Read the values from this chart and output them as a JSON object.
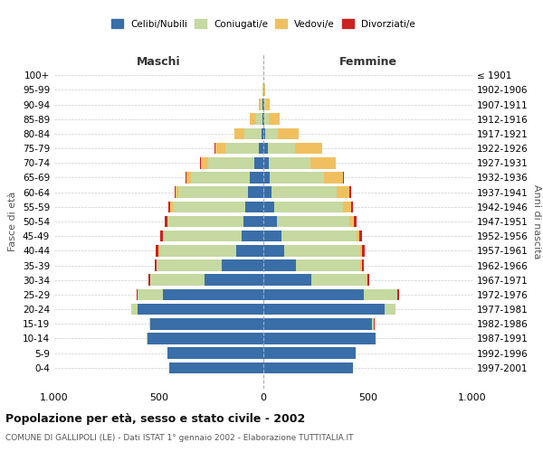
{
  "age_groups": [
    "0-4",
    "5-9",
    "10-14",
    "15-19",
    "20-24",
    "25-29",
    "30-34",
    "35-39",
    "40-44",
    "45-49",
    "50-54",
    "55-59",
    "60-64",
    "65-69",
    "70-74",
    "75-79",
    "80-84",
    "85-89",
    "90-94",
    "95-99",
    "100+"
  ],
  "birth_years": [
    "1997-2001",
    "1992-1996",
    "1987-1991",
    "1982-1986",
    "1977-1981",
    "1972-1976",
    "1967-1971",
    "1962-1966",
    "1957-1961",
    "1952-1956",
    "1947-1951",
    "1942-1946",
    "1937-1941",
    "1932-1936",
    "1927-1931",
    "1922-1926",
    "1917-1921",
    "1912-1916",
    "1907-1911",
    "1902-1906",
    "≤ 1901"
  ],
  "males": {
    "celibi": [
      450,
      460,
      555,
      540,
      600,
      480,
      280,
      200,
      130,
      105,
      95,
      85,
      75,
      65,
      45,
      20,
      10,
      5,
      3,
      1,
      0
    ],
    "coniugati": [
      0,
      0,
      2,
      5,
      30,
      120,
      260,
      310,
      370,
      370,
      360,
      350,
      330,
      280,
      220,
      160,
      80,
      30,
      8,
      2,
      0
    ],
    "vedovi": [
      0,
      0,
      0,
      0,
      0,
      1,
      1,
      2,
      3,
      5,
      5,
      10,
      15,
      25,
      35,
      50,
      50,
      30,
      10,
      2,
      0
    ],
    "divorziati": [
      0,
      0,
      0,
      1,
      2,
      5,
      8,
      8,
      10,
      12,
      10,
      8,
      5,
      3,
      3,
      2,
      0,
      0,
      0,
      0,
      0
    ]
  },
  "females": {
    "nubili": [
      430,
      440,
      535,
      520,
      580,
      480,
      230,
      155,
      100,
      85,
      65,
      50,
      40,
      30,
      25,
      20,
      10,
      5,
      3,
      2,
      0
    ],
    "coniugate": [
      0,
      0,
      2,
      10,
      50,
      160,
      265,
      310,
      365,
      360,
      345,
      330,
      310,
      260,
      200,
      130,
      60,
      20,
      8,
      2,
      0
    ],
    "vedove": [
      0,
      0,
      0,
      0,
      1,
      2,
      3,
      5,
      8,
      15,
      25,
      40,
      60,
      90,
      120,
      130,
      100,
      55,
      18,
      3,
      0
    ],
    "divorziate": [
      0,
      0,
      0,
      1,
      3,
      6,
      10,
      10,
      12,
      12,
      12,
      10,
      8,
      4,
      3,
      2,
      0,
      0,
      0,
      0,
      0
    ]
  },
  "colors": {
    "celibi_nubili": "#3a6ea8",
    "coniugati": "#c5d9a0",
    "vedovi": "#f0c060",
    "divorziati": "#cc2222"
  },
  "xlim": 1000,
  "title": "Popolazione per età, sesso e stato civile - 2002",
  "subtitle": "COMUNE DI GALLIPOLI (LE) - Dati ISTAT 1° gennaio 2002 - Elaborazione TUTTITALIA.IT",
  "ylabel_left": "Fasce di età",
  "ylabel_right": "Anni di nascita",
  "xlabel_left": "Maschi",
  "xlabel_right": "Femmine",
  "bg_color": "#ffffff",
  "grid_color": "#cccccc"
}
